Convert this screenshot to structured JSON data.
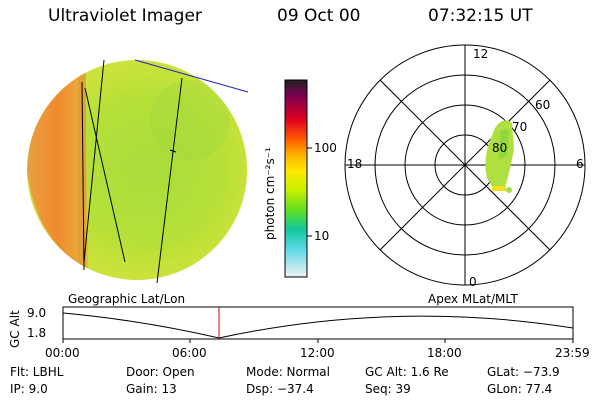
{
  "header": {
    "instrument": "Ultraviolet Imager",
    "date": "09 Oct 00",
    "time": "07:32:15 UT"
  },
  "colorbar": {
    "ticks": [
      "100",
      "10"
    ],
    "unit_label": "photon cm⁻²s⁻¹"
  },
  "polar_plot": {
    "labels": {
      "top": "12",
      "left": "18",
      "right": "6",
      "bottom": "0",
      "r60": "60",
      "r70": "70",
      "r80": "80"
    },
    "caption": "Apex MLat/MLT"
  },
  "globe": {
    "caption": "Geographic Lat/Lon"
  },
  "altitude_plot": {
    "ylabel": "GC Alt",
    "y_max": "9.0",
    "y_min": "1.8",
    "time_ticks": [
      "00:00",
      "06:00",
      "12:00",
      "18:00",
      "23:59"
    ],
    "marker_color": "#cc0000"
  },
  "info": {
    "flt": "Flt: LBHL",
    "ip": "IP:  9.0",
    "door": "Door: Open",
    "gain": "Gain: 13",
    "mode": "Mode: Normal",
    "dsp": "Dsp:  −37.4",
    "gcalt": "GC Alt: 1.6 Re",
    "seq": "Seq: 39",
    "glat": "GLat: −73.9",
    "glon": "GLon:  77.4"
  }
}
